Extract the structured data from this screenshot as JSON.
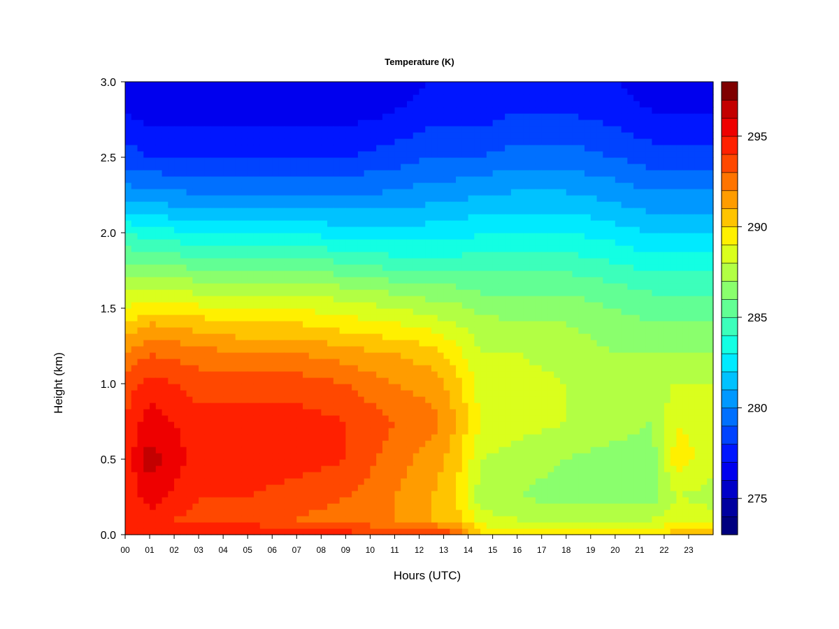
{
  "chart_data": {
    "type": "heatmap",
    "title": "Temperature (K)",
    "xlabel": "Hours (UTC)",
    "ylabel": "Height (km)",
    "xlim": [
      0,
      24
    ],
    "ylim": [
      0.0,
      3.0
    ],
    "x_tick_labels": [
      "00",
      "01",
      "02",
      "03",
      "04",
      "05",
      "06",
      "07",
      "08",
      "09",
      "10",
      "11",
      "12",
      "13",
      "14",
      "15",
      "16",
      "17",
      "18",
      "19",
      "20",
      "21",
      "22",
      "23"
    ],
    "y_tick_labels": [
      "0.0",
      "0.5",
      "1.0",
      "1.5",
      "2.0",
      "2.5",
      "3.0"
    ],
    "y_ticks": [
      0.0,
      0.5,
      1.0,
      1.5,
      2.0,
      2.5,
      3.0
    ],
    "colorbar": {
      "range": [
        273,
        298
      ],
      "ticks": [
        275,
        280,
        285,
        290,
        295
      ],
      "tick_labels": [
        "275",
        "280",
        "285",
        "290",
        "295"
      ],
      "colors": [
        "#00007f",
        "#00009f",
        "#0000c8",
        "#0000ee",
        "#0016ff",
        "#0043ff",
        "#0070ff",
        "#0098ff",
        "#00c2ff",
        "#00eaff",
        "#13ffe3",
        "#3cffbb",
        "#62ff94",
        "#8aff6d",
        "#b2ff44",
        "#daff1d",
        "#fff000",
        "#ffc400",
        "#ff9c00",
        "#ff7400",
        "#ff4800",
        "#ff2000",
        "#ee0000",
        "#c30000",
        "#7f0000"
      ]
    },
    "profile_heights_km": [
      0.0,
      0.1,
      0.25,
      0.5,
      0.75,
      1.0,
      1.2,
      1.4,
      1.6,
      1.8,
      2.0,
      2.2,
      2.5,
      2.8,
      3.0
    ],
    "profiles": [
      {
        "hour": 0.0,
        "temps_k": [
          295.0,
          294.0,
          294.0,
          294.5,
          294.0,
          293.5,
          292.0,
          290.0,
          288.0,
          286.0,
          284.0,
          281.0,
          278.5,
          277.0,
          276.5
        ]
      },
      {
        "hour": 1.0,
        "temps_k": [
          295.0,
          294.5,
          295.5,
          296.5,
          295.5,
          294.5,
          293.0,
          291.0,
          288.5,
          286.0,
          283.5,
          281.0,
          278.0,
          276.5,
          276.0
        ]
      },
      {
        "hour": 3.0,
        "temps_k": [
          295.0,
          293.5,
          294.0,
          294.5,
          294.5,
          293.5,
          292.5,
          290.5,
          288.0,
          285.5,
          283.0,
          280.5,
          278.0,
          276.5,
          276.0
        ]
      },
      {
        "hour": 5.0,
        "temps_k": [
          295.0,
          293.5,
          294.0,
          294.5,
          294.5,
          293.5,
          292.0,
          290.0,
          288.0,
          285.5,
          283.0,
          280.5,
          278.0,
          276.5,
          276.0
        ]
      },
      {
        "hour": 7.0,
        "temps_k": [
          295.0,
          293.0,
          293.5,
          294.5,
          294.5,
          293.5,
          292.0,
          290.0,
          288.0,
          285.5,
          283.0,
          280.5,
          278.0,
          276.5,
          276.0
        ]
      },
      {
        "hour": 9.0,
        "temps_k": [
          294.5,
          292.5,
          293.0,
          294.0,
          294.0,
          293.0,
          291.5,
          289.5,
          287.5,
          285.0,
          282.5,
          280.5,
          278.0,
          276.5,
          276.0
        ]
      },
      {
        "hour": 11.0,
        "temps_k": [
          294.0,
          292.0,
          292.0,
          292.5,
          293.0,
          292.0,
          291.0,
          289.0,
          287.0,
          284.5,
          282.5,
          280.5,
          278.5,
          277.0,
          276.5
        ]
      },
      {
        "hour": 12.5,
        "temps_k": [
          294.0,
          291.0,
          291.0,
          291.5,
          292.5,
          291.5,
          290.5,
          288.5,
          286.5,
          284.5,
          282.5,
          281.0,
          279.0,
          277.5,
          277.0
        ]
      },
      {
        "hour": 13.5,
        "temps_k": [
          293.5,
          290.5,
          290.0,
          290.5,
          291.0,
          290.5,
          289.5,
          288.0,
          286.5,
          284.5,
          282.5,
          281.0,
          279.0,
          277.5,
          277.0
        ]
      },
      {
        "hour": 14.5,
        "temps_k": [
          290.0,
          288.5,
          287.5,
          288.0,
          289.0,
          288.5,
          288.0,
          287.5,
          286.0,
          284.5,
          283.0,
          281.5,
          279.0,
          277.5,
          277.0
        ]
      },
      {
        "hour": 16.0,
        "temps_k": [
          289.5,
          288.0,
          287.0,
          287.5,
          288.5,
          288.5,
          288.0,
          287.0,
          286.0,
          284.5,
          283.0,
          281.5,
          279.5,
          278.0,
          277.5
        ]
      },
      {
        "hour": 18.0,
        "temps_k": [
          289.5,
          288.0,
          286.5,
          287.0,
          288.0,
          288.0,
          287.5,
          287.0,
          286.0,
          284.5,
          283.0,
          281.5,
          279.5,
          278.0,
          277.5
        ]
      },
      {
        "hour": 20.0,
        "temps_k": [
          289.5,
          288.0,
          286.5,
          286.5,
          287.5,
          287.5,
          287.0,
          286.5,
          285.5,
          284.0,
          282.5,
          281.0,
          279.0,
          277.5,
          277.0
        ]
      },
      {
        "hour": 21.5,
        "temps_k": [
          289.5,
          288.0,
          286.5,
          286.5,
          287.0,
          287.5,
          287.0,
          286.0,
          285.0,
          283.5,
          282.0,
          280.5,
          278.5,
          277.0,
          276.5
        ]
      },
      {
        "hour": 22.5,
        "temps_k": [
          290.5,
          289.0,
          288.0,
          289.5,
          289.0,
          288.0,
          287.0,
          286.0,
          285.0,
          283.5,
          282.0,
          280.5,
          278.5,
          277.0,
          276.5
        ]
      },
      {
        "hour": 24.0,
        "temps_k": [
          291.0,
          288.5,
          287.5,
          288.5,
          288.5,
          288.0,
          287.0,
          286.0,
          285.0,
          283.5,
          282.0,
          280.5,
          278.5,
          277.0,
          276.5
        ]
      }
    ],
    "grid": false,
    "legend": "colorbar-right"
  }
}
